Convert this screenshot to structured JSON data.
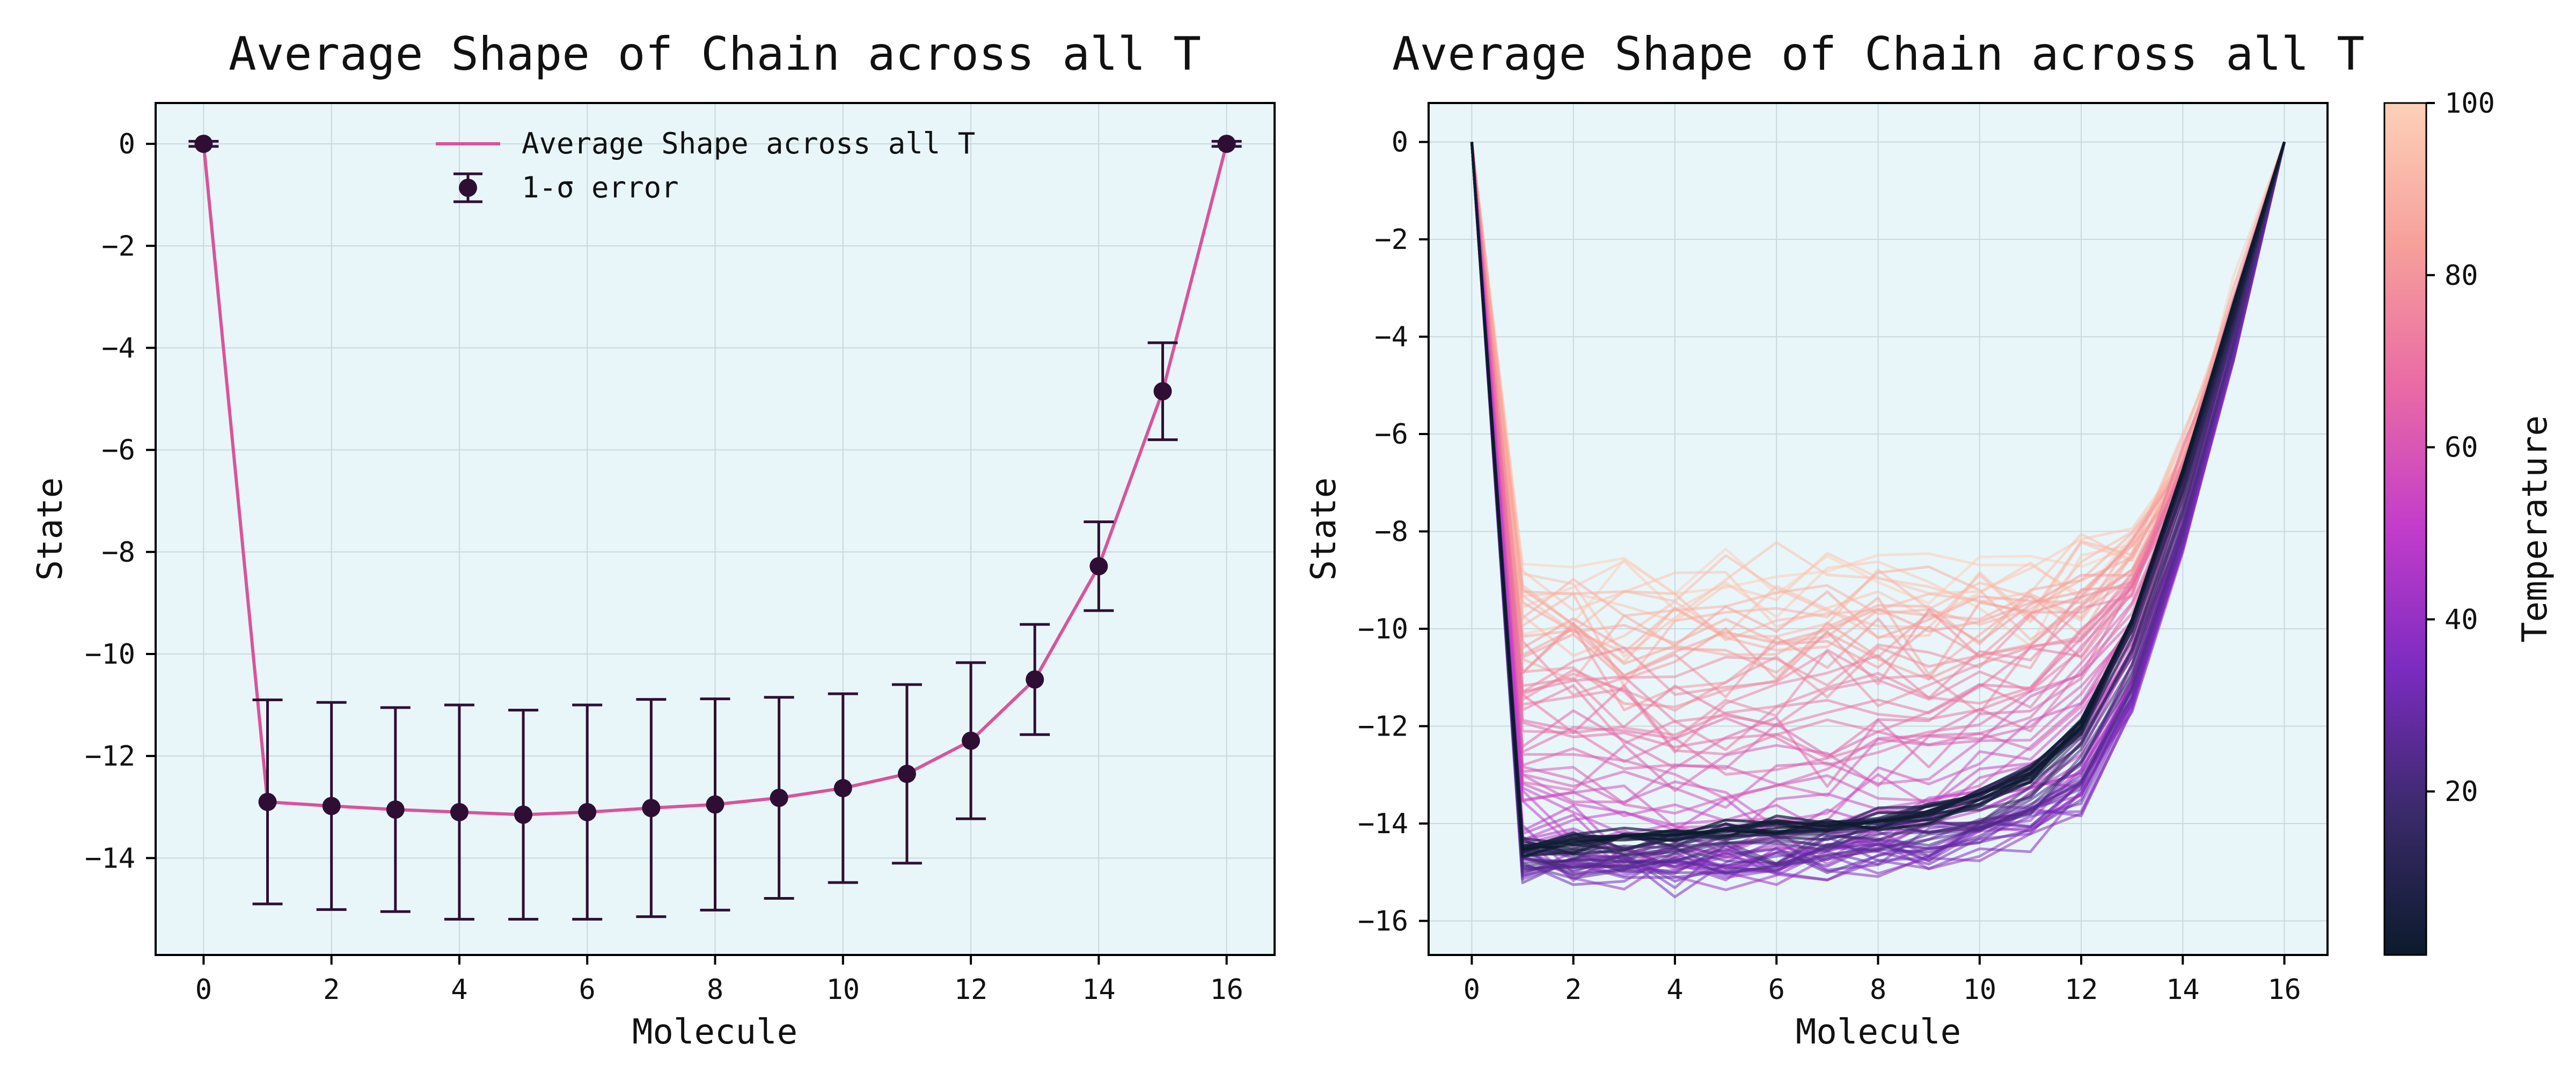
{
  "figure": {
    "background": "#ffffff",
    "plot_background": "#e8f6fa",
    "grid_color": "#c9d8de",
    "accent_line": "#d9539b",
    "marker_color": "#2e0f33"
  },
  "chart_data": [
    {
      "type": "line",
      "title": "Average Shape of Chain across all T",
      "xlabel": "Molecule",
      "ylabel": "State",
      "xlim": [
        -0.75,
        16.75
      ],
      "ylim": [
        -15.9,
        0.8
      ],
      "xticks": [
        0,
        2,
        4,
        6,
        8,
        10,
        12,
        14,
        16
      ],
      "yticks": [
        0,
        -2,
        -4,
        -6,
        -8,
        -10,
        -12,
        -14
      ],
      "grid": true,
      "legend": {
        "placement": "top-center",
        "entries": [
          "Average Shape across all T",
          "1-σ error"
        ]
      },
      "series": [
        {
          "name": "Average Shape across all T",
          "x": [
            0,
            1,
            2,
            3,
            4,
            5,
            6,
            7,
            8,
            9,
            10,
            11,
            12,
            13,
            14,
            15,
            16
          ],
          "values": [
            0,
            -12.9,
            -12.98,
            -13.05,
            -13.1,
            -13.15,
            -13.1,
            -13.02,
            -12.95,
            -12.82,
            -12.63,
            -12.35,
            -11.7,
            -10.5,
            -8.28,
            -4.85,
            0
          ],
          "errors": [
            0.05,
            2.0,
            2.03,
            2.0,
            2.1,
            2.05,
            2.1,
            2.13,
            2.07,
            1.97,
            1.85,
            1.75,
            1.53,
            1.08,
            0.87,
            0.95,
            0.05
          ]
        }
      ]
    },
    {
      "type": "line",
      "title": "Average Shape of Chain across all T",
      "xlabel": "Molecule",
      "ylabel": "State",
      "xlim": [
        -0.85,
        16.85
      ],
      "ylim": [
        -16.7,
        0.8
      ],
      "xticks": [
        0,
        2,
        4,
        6,
        8,
        10,
        12,
        14,
        16
      ],
      "yticks": [
        0,
        -2,
        -4,
        -6,
        -8,
        -10,
        -12,
        -14,
        -16
      ],
      "grid": true,
      "colorbar": {
        "label": "Temperature",
        "range": [
          1,
          100
        ],
        "ticks": [
          20,
          40,
          60,
          80,
          100
        ],
        "colormap": [
          "#0b1b2c",
          "#3a2a6a",
          "#7a2bbf",
          "#c23ccb",
          "#e96aa5",
          "#f6a09a",
          "#fdd0b8"
        ]
      },
      "series_count": 100,
      "x": [
        0,
        1,
        2,
        3,
        4,
        5,
        6,
        7,
        8,
        9,
        10,
        11,
        12,
        13,
        14,
        15,
        16
      ],
      "profiles": [
        {
          "temperature": 1,
          "values": [
            0,
            -14.6,
            -14.4,
            -14.3,
            -14.3,
            -14.2,
            -14.1,
            -14.1,
            -14.0,
            -13.8,
            -13.5,
            -13.0,
            -12.0,
            -9.8,
            -6.7,
            -3.3,
            0
          ]
        },
        {
          "temperature": 12,
          "values": [
            0,
            -14.4,
            -14.4,
            -14.3,
            -14.2,
            -14.1,
            -14.0,
            -14.0,
            -13.9,
            -13.7,
            -13.4,
            -12.9,
            -11.9,
            -9.9,
            -7.0,
            -3.6,
            0
          ]
        },
        {
          "temperature": 25,
          "values": [
            0,
            -14.9,
            -14.9,
            -14.8,
            -14.8,
            -14.7,
            -14.7,
            -14.6,
            -14.5,
            -14.4,
            -14.2,
            -13.8,
            -13.0,
            -11.2,
            -8.0,
            -4.2,
            0
          ]
        },
        {
          "temperature": 40,
          "values": [
            0,
            -14.8,
            -14.9,
            -15.0,
            -15.0,
            -14.9,
            -14.9,
            -14.8,
            -14.7,
            -14.6,
            -14.4,
            -14.1,
            -13.4,
            -11.6,
            -8.4,
            -4.4,
            0
          ]
        },
        {
          "temperature": 55,
          "values": [
            0,
            -13.6,
            -13.8,
            -14.0,
            -14.1,
            -14.1,
            -14.0,
            -13.9,
            -13.8,
            -13.6,
            -13.3,
            -12.9,
            -12.0,
            -10.4,
            -7.6,
            -4.0,
            0
          ]
        },
        {
          "temperature": 70,
          "values": [
            0,
            -11.8,
            -11.8,
            -11.9,
            -12.0,
            -12.0,
            -11.9,
            -11.8,
            -11.6,
            -11.4,
            -11.2,
            -10.9,
            -10.4,
            -9.2,
            -6.9,
            -3.6,
            0
          ]
        },
        {
          "temperature": 85,
          "values": [
            0,
            -10.3,
            -10.2,
            -10.3,
            -10.3,
            -10.2,
            -10.1,
            -10.0,
            -9.9,
            -9.8,
            -9.7,
            -9.6,
            -9.4,
            -8.5,
            -6.6,
            -3.5,
            0
          ]
        },
        {
          "temperature": 100,
          "values": [
            0,
            -9.2,
            -9.1,
            -9.1,
            -9.1,
            -9.0,
            -9.0,
            -8.9,
            -8.9,
            -8.9,
            -8.9,
            -8.9,
            -8.9,
            -8.2,
            -6.4,
            -3.4,
            0
          ]
        }
      ]
    }
  ]
}
